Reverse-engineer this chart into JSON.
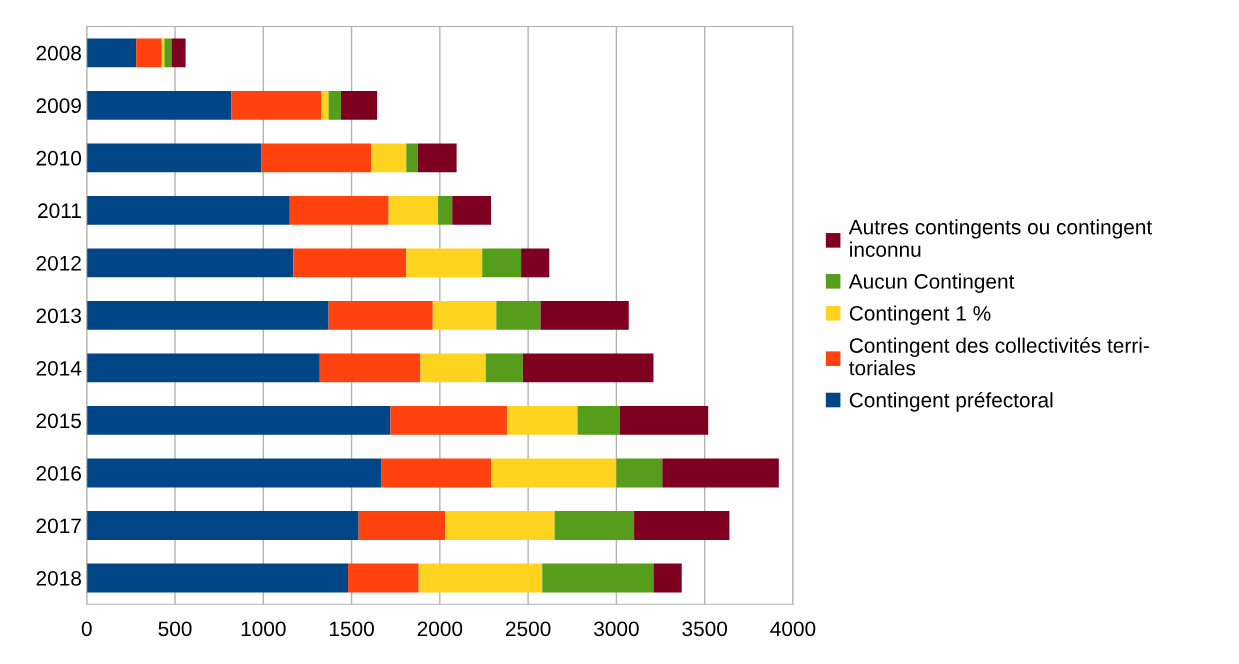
{
  "chart_data": {
    "type": "bar",
    "orientation": "horizontal",
    "stacked": true,
    "categories": [
      "2008",
      "2009",
      "2010",
      "2011",
      "2012",
      "2013",
      "2014",
      "2015",
      "2016",
      "2017",
      "2018"
    ],
    "series": [
      {
        "name": "Contingent préfectoral",
        "color": "#004586",
        "values": [
          280,
          820,
          990,
          1150,
          1170,
          1370,
          1320,
          1720,
          1670,
          1540,
          1480
        ]
      },
      {
        "name": "Contingent des collectivités terri-\ntoriales",
        "color": "#ff420e",
        "values": [
          145,
          510,
          620,
          560,
          640,
          590,
          570,
          660,
          620,
          490,
          400
        ]
      },
      {
        "name": "Contingent 1 %",
        "color": "#ffd320",
        "values": [
          15,
          40,
          200,
          280,
          430,
          360,
          370,
          400,
          710,
          620,
          700
        ]
      },
      {
        "name": "Aucun Contingent",
        "color": "#579d1c",
        "values": [
          40,
          70,
          65,
          80,
          220,
          250,
          210,
          240,
          260,
          450,
          630
        ]
      },
      {
        "name": "Autres contingents ou contingent\ninconnu",
        "color": "#7e0021",
        "values": [
          80,
          205,
          220,
          220,
          160,
          500,
          740,
          500,
          660,
          540,
          160
        ]
      }
    ],
    "xlim": [
      0,
      4000
    ],
    "xticks": [
      0,
      500,
      1000,
      1500,
      2000,
      2500,
      3000,
      3500,
      4000
    ],
    "grid": "x",
    "legend": "right"
  }
}
